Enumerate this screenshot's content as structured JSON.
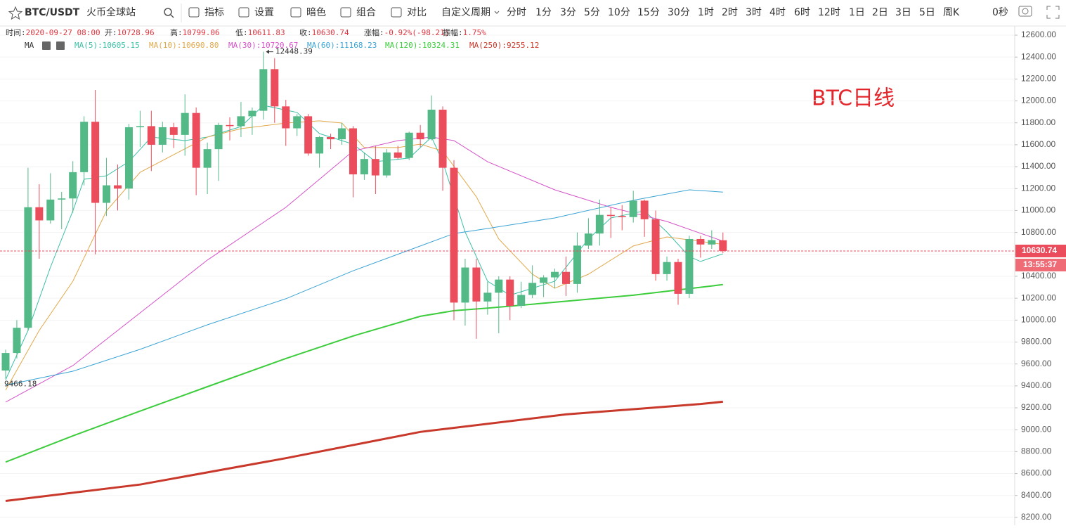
{
  "toolbar": {
    "symbol": "BTC/USDT",
    "exchange": "火币全球站",
    "tools": [
      "指标",
      "设置",
      "暗色",
      "组合",
      "对比"
    ],
    "custom_period": "自定义周期",
    "periods": [
      "分时",
      "1分",
      "3分",
      "5分",
      "10分",
      "15分",
      "30分",
      "1时",
      "2时",
      "3时",
      "4时",
      "6时",
      "12时",
      "1日",
      "2日",
      "3日",
      "5日",
      "周K"
    ],
    "active_period": "1日",
    "timer": "0秒"
  },
  "header": [
    {
      "label": "时间:",
      "value": "2020-09-27 08:00"
    },
    {
      "label": "开:"
    },
    {
      "label": "高:"
    },
    {
      "label": "低:"
    },
    {
      "label": "收:"
    },
    {
      "label": "涨幅:",
      "value": "-0.92%(-98.21)"
    },
    {
      "label": "振幅:",
      "value": "1.75%"
    }
  ],
  "chart_data": {
    "type": "candlestick",
    "up_color": "#53b987",
    "down_color": "#eb4d5c",
    "open": [
      9540,
      9700,
      9930,
      11030,
      10910,
      11100,
      11110,
      11350,
      11810,
      11070,
      11230,
      11200,
      11760,
      11770,
      11600,
      11760,
      11690,
      11890,
      11390,
      11560,
      11780,
      11770,
      11860,
      11910,
      12290,
      11950,
      11750,
      11860,
      11520,
      11670,
      11650,
      11750,
      11330,
      11470,
      11320,
      11530,
      11480,
      11710,
      11650,
      11920,
      11390,
      10160,
      10480,
      10170,
      10250,
      10370,
      10130,
      10230,
      10340,
      10390,
      10440,
      10330,
      10680,
      10790,
      10960,
      10950,
      10940,
      11090,
      10920,
      10420,
      10530,
      10240,
      10740,
      10690,
      10728.96
    ],
    "high": [
      9730,
      10000,
      11390,
      11240,
      11340,
      11170,
      11450,
      11860,
      12100,
      11480,
      11420,
      11790,
      11910,
      11910,
      11810,
      11800,
      12060,
      11940,
      11620,
      11800,
      11850,
      11990,
      11940,
      12448.39,
      12390,
      12010,
      11880,
      11880,
      11680,
      11700,
      11800,
      11770,
      11530,
      11590,
      11560,
      11590,
      11720,
      11780,
      12050,
      11950,
      11460,
      10560,
      10560,
      10350,
      10400,
      10400,
      10350,
      10500,
      10410,
      10470,
      10580,
      10800,
      10930,
      11100,
      11030,
      11050,
      11180,
      11100,
      11000,
      10580,
      10560,
      10770,
      10770,
      10820,
      10799.06
    ],
    "low": [
      9466.18,
      9650,
      9900,
      10560,
      10880,
      10830,
      10980,
      11230,
      10600,
      10950,
      11000,
      11100,
      11580,
      11360,
      11530,
      11570,
      11500,
      11140,
      11150,
      11270,
      11640,
      11670,
      11690,
      11830,
      11800,
      11590,
      11680,
      11500,
      11390,
      11560,
      11600,
      11120,
      11280,
      11150,
      11300,
      11470,
      11460,
      11580,
      11640,
      11180,
      10000,
      9950,
      9830,
      10050,
      9880,
      10000,
      10110,
      10200,
      10210,
      10290,
      10220,
      10250,
      10650,
      10680,
      10750,
      10820,
      10890,
      10760,
      10360,
      10360,
      10140,
      10200,
      10570,
      10650,
      10611.83
    ],
    "close": [
      9700,
      9930,
      11030,
      10910,
      11100,
      11110,
      11350,
      11810,
      11070,
      11230,
      11200,
      11760,
      11770,
      11600,
      11760,
      11690,
      11890,
      11390,
      11560,
      11780,
      11770,
      11860,
      11910,
      12290,
      11950,
      11750,
      11860,
      11520,
      11670,
      11650,
      11750,
      11330,
      11470,
      11320,
      11530,
      11480,
      11710,
      11650,
      11920,
      11390,
      10160,
      10480,
      10170,
      10250,
      10370,
      10130,
      10230,
      10340,
      10390,
      10440,
      10330,
      10680,
      10790,
      10960,
      10950,
      10940,
      11090,
      10920,
      10420,
      10530,
      10240,
      10740,
      10690,
      10730,
      10630.74
    ],
    "ylim": [
      8129,
      12677
    ],
    "yticks": [
      {
        "value": 8200,
        "label": "8200.00"
      },
      {
        "value": 8400,
        "label": "8400.00"
      },
      {
        "value": 8600,
        "label": "8600.00"
      },
      {
        "value": 8800,
        "label": "8800.00"
      },
      {
        "value": 9000,
        "label": "9000.00"
      },
      {
        "value": 9200,
        "label": "9200.00"
      },
      {
        "value": 9400,
        "label": "9400.00"
      },
      {
        "value": 9600,
        "label": "9600.00"
      },
      {
        "value": 9800,
        "label": "9800.00"
      },
      {
        "value": 10000,
        "label": "10000.00"
      },
      {
        "value": 10200,
        "label": "10200.00"
      },
      {
        "value": 10400,
        "label": "10400.00"
      },
      {
        "value": 10600,
        "label": "10600.00"
      },
      {
        "value": 10800,
        "label": "10800.00"
      },
      {
        "value": 11000,
        "label": "11000.00"
      },
      {
        "value": 11200,
        "label": "11200.00"
      },
      {
        "value": 11400,
        "label": "11400.00"
      },
      {
        "value": 11600,
        "label": "11600.00"
      },
      {
        "value": 11800,
        "label": "11800.00"
      },
      {
        "value": 12000,
        "label": "12000.00"
      },
      {
        "value": 12200,
        "label": "12200.00"
      },
      {
        "value": 12400,
        "label": "12400.00"
      },
      {
        "value": 12600,
        "label": "12600.00"
      }
    ],
    "grid": true,
    "ma_title": "MA",
    "ma": [
      {
        "name": "MA(5):10605.15",
        "color": "#3cbfa6",
        "width": 1,
        "x": [
          0,
          2,
          4,
          6,
          7,
          9,
          11,
          13,
          16,
          18,
          21,
          23,
          26,
          28,
          31,
          33,
          36,
          38,
          39,
          41,
          43,
          45,
          47,
          49,
          52,
          54,
          57,
          59,
          61,
          62,
          64
        ],
        "values": [
          9457,
          9906,
          10483,
          10997,
          11285,
          11317,
          11446,
          11670,
          11638,
          11670,
          11766,
          11959,
          11895,
          11702,
          11606,
          11446,
          11478,
          11670,
          11446,
          10804,
          10355,
          10227,
          10291,
          10355,
          10740,
          10932,
          10997,
          10804,
          10580,
          10535,
          10605.15
        ]
      },
      {
        "name": "MA(10):10690.80",
        "color": "#e0a84a",
        "width": 1,
        "x": [
          0,
          3,
          6,
          9,
          12,
          18,
          21,
          25,
          28,
          30,
          32,
          35,
          37,
          39,
          42,
          44,
          47,
          49,
          52,
          56,
          59,
          64
        ],
        "values": [
          9361,
          9906,
          10355,
          10997,
          11349,
          11670,
          11747,
          11798,
          11818,
          11798,
          11574,
          11574,
          11606,
          11542,
          11125,
          10740,
          10419,
          10291,
          10419,
          10676,
          10759,
          10690.8
        ]
      },
      {
        "name": "MA(30):10720.67",
        "color": "#d452c8",
        "width": 1,
        "x": [
          0,
          6,
          12,
          18,
          25,
          28,
          31,
          35,
          38,
          40,
          43,
          49,
          54,
          59,
          64
        ],
        "values": [
          9252,
          9585,
          10066,
          10548,
          11029,
          11285,
          11542,
          11638,
          11670,
          11638,
          11445,
          11189,
          11029,
          10900,
          10720.67
        ]
      },
      {
        "name": "MA(60):11168.23",
        "color": "#3aa3d4",
        "width": 1,
        "x": [
          0,
          6,
          12,
          18,
          25,
          31,
          37,
          40,
          43,
          49,
          56,
          61,
          64
        ],
        "values": [
          9406,
          9534,
          9733,
          9957,
          10195,
          10450,
          10676,
          10790,
          10836,
          10932,
          11093,
          11189,
          11168.23
        ]
      },
      {
        "name": "MA(120):10324.31",
        "color": "#3ccc3c",
        "width": 2,
        "x": [
          0,
          6,
          12,
          18,
          25,
          31,
          37,
          40,
          43,
          49,
          56,
          64
        ],
        "values": [
          8705,
          8944,
          9170,
          9393,
          9650,
          9855,
          10035,
          10086,
          10110,
          10163,
          10227,
          10324.31
        ]
      },
      {
        "name": "MA(250):9255.12",
        "color": "#c9392b",
        "width": 3,
        "x": [
          0,
          12,
          25,
          37,
          50,
          62,
          64
        ],
        "values": [
          8350,
          8500,
          8740,
          8980,
          9140,
          9235,
          9255.12
        ]
      }
    ],
    "countdown": "13:55:37",
    "annotation": "BTC日线"
  }
}
